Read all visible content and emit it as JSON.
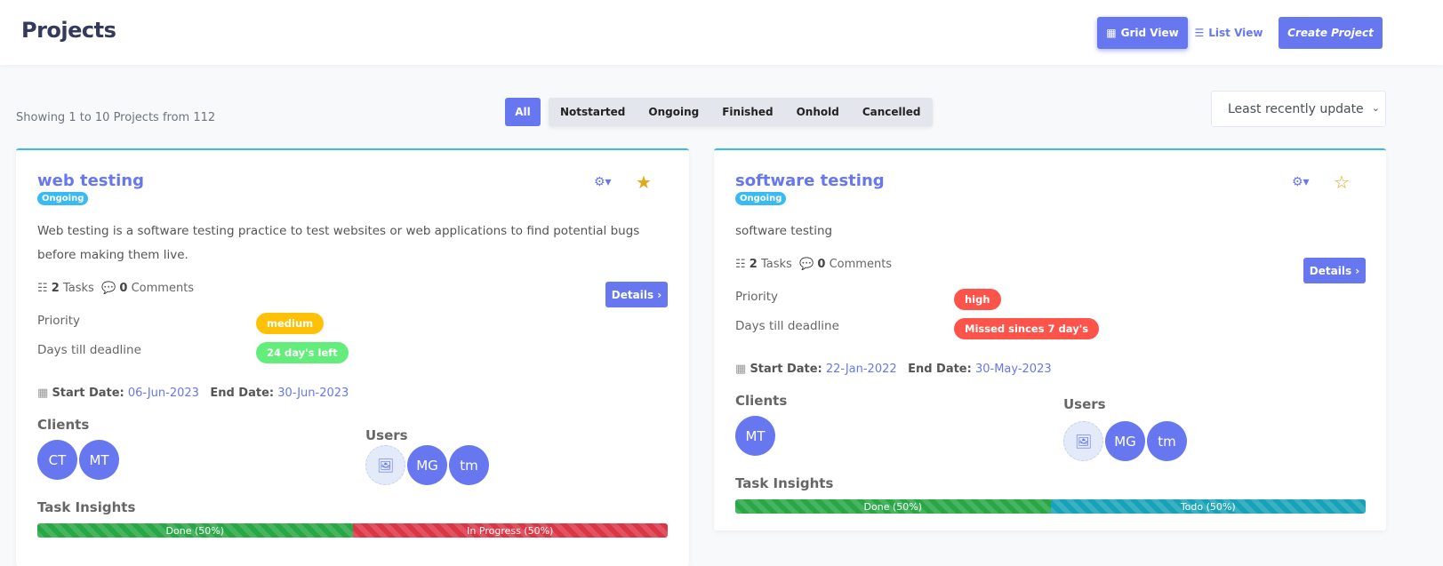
{
  "header": {
    "title": "Projects",
    "grid_view": "Grid View",
    "list_view": "List View",
    "create": "Create Project"
  },
  "showing": "Showing 1 to 10 Projects from 112",
  "filters": {
    "all": "All",
    "items": [
      "Notstarted",
      "Ongoing",
      "Finished",
      "Onhold",
      "Cancelled"
    ]
  },
  "sort": {
    "selected": "Least recently update"
  },
  "labels": {
    "tasks": "Tasks",
    "comments": "Comments",
    "details": "Details",
    "priority": "Priority",
    "deadline": "Days till deadline",
    "start": "Start Date:",
    "end": "End Date:",
    "clients": "Clients",
    "users": "Users",
    "insights": "Task Insights"
  },
  "colors": {
    "accent": "#6777ef",
    "info": "#3abaf4",
    "warning": "#ffc107",
    "success": "#63ed7a",
    "danger": "#fc544b",
    "done": "#28a745",
    "inprogress": "#dc3545",
    "todo": "#17a2b8"
  },
  "projects": [
    {
      "title": "web testing",
      "status": "Ongoing",
      "starred": true,
      "description": "Web testing is a software testing practice to test websites or web applications to find potential bugs before making them live.",
      "tasks": "2",
      "comments": "0",
      "priority": "medium",
      "deadline": "24 day's left",
      "start": "06-Jun-2023",
      "end": "30-Jun-2023",
      "clients": [
        "CT",
        "MT"
      ],
      "users": [
        "image",
        "MG",
        "tm"
      ],
      "insights": [
        {
          "label": "Done (50%)",
          "value": 50,
          "color": "#28a745"
        },
        {
          "label": "In Progress (50%)",
          "value": 50,
          "color": "#dc3545"
        }
      ]
    },
    {
      "title": "software testing",
      "status": "Ongoing",
      "starred": false,
      "description": "software testing",
      "tasks": "2",
      "comments": "0",
      "priority": "high",
      "deadline": "Missed sinces 7 day's",
      "start": "22-Jan-2022",
      "end": "30-May-2023",
      "clients": [
        "MT"
      ],
      "users": [
        "image",
        "MG",
        "tm"
      ],
      "insights": [
        {
          "label": "Done (50%)",
          "value": 50,
          "color": "#28a745"
        },
        {
          "label": "Todo (50%)",
          "value": 50,
          "color": "#17a2b8"
        }
      ]
    }
  ]
}
